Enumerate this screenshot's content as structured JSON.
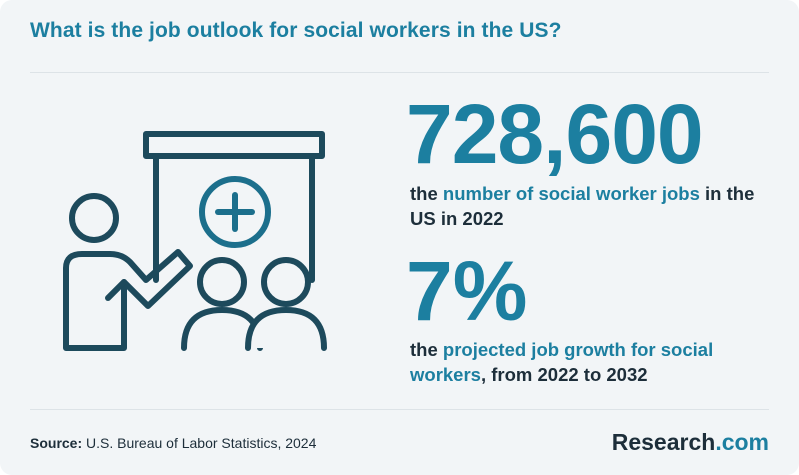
{
  "title": "What is the job outlook for social workers in the US?",
  "stat1": {
    "value": "728,600",
    "text_before": "the ",
    "text_highlight": "number of social worker jobs",
    "text_after": " in the US in 2022"
  },
  "stat2": {
    "value": "7%",
    "text_before": "the ",
    "text_highlight": "projected job growth for social workers",
    "text_after": ", from 2022 to 2032"
  },
  "source": {
    "label": "Source:",
    "text": " U.S. Bureau of Labor Statistics, 2024"
  },
  "brand": {
    "name": "Research",
    "suffix": ".com"
  },
  "illustration_icon": "presenter-with-audience-icon",
  "colors": {
    "accent": "#1c7fa0",
    "text": "#1d2e3a",
    "background": "#f2f5f7",
    "icon_stroke": "#1d4a5c"
  }
}
